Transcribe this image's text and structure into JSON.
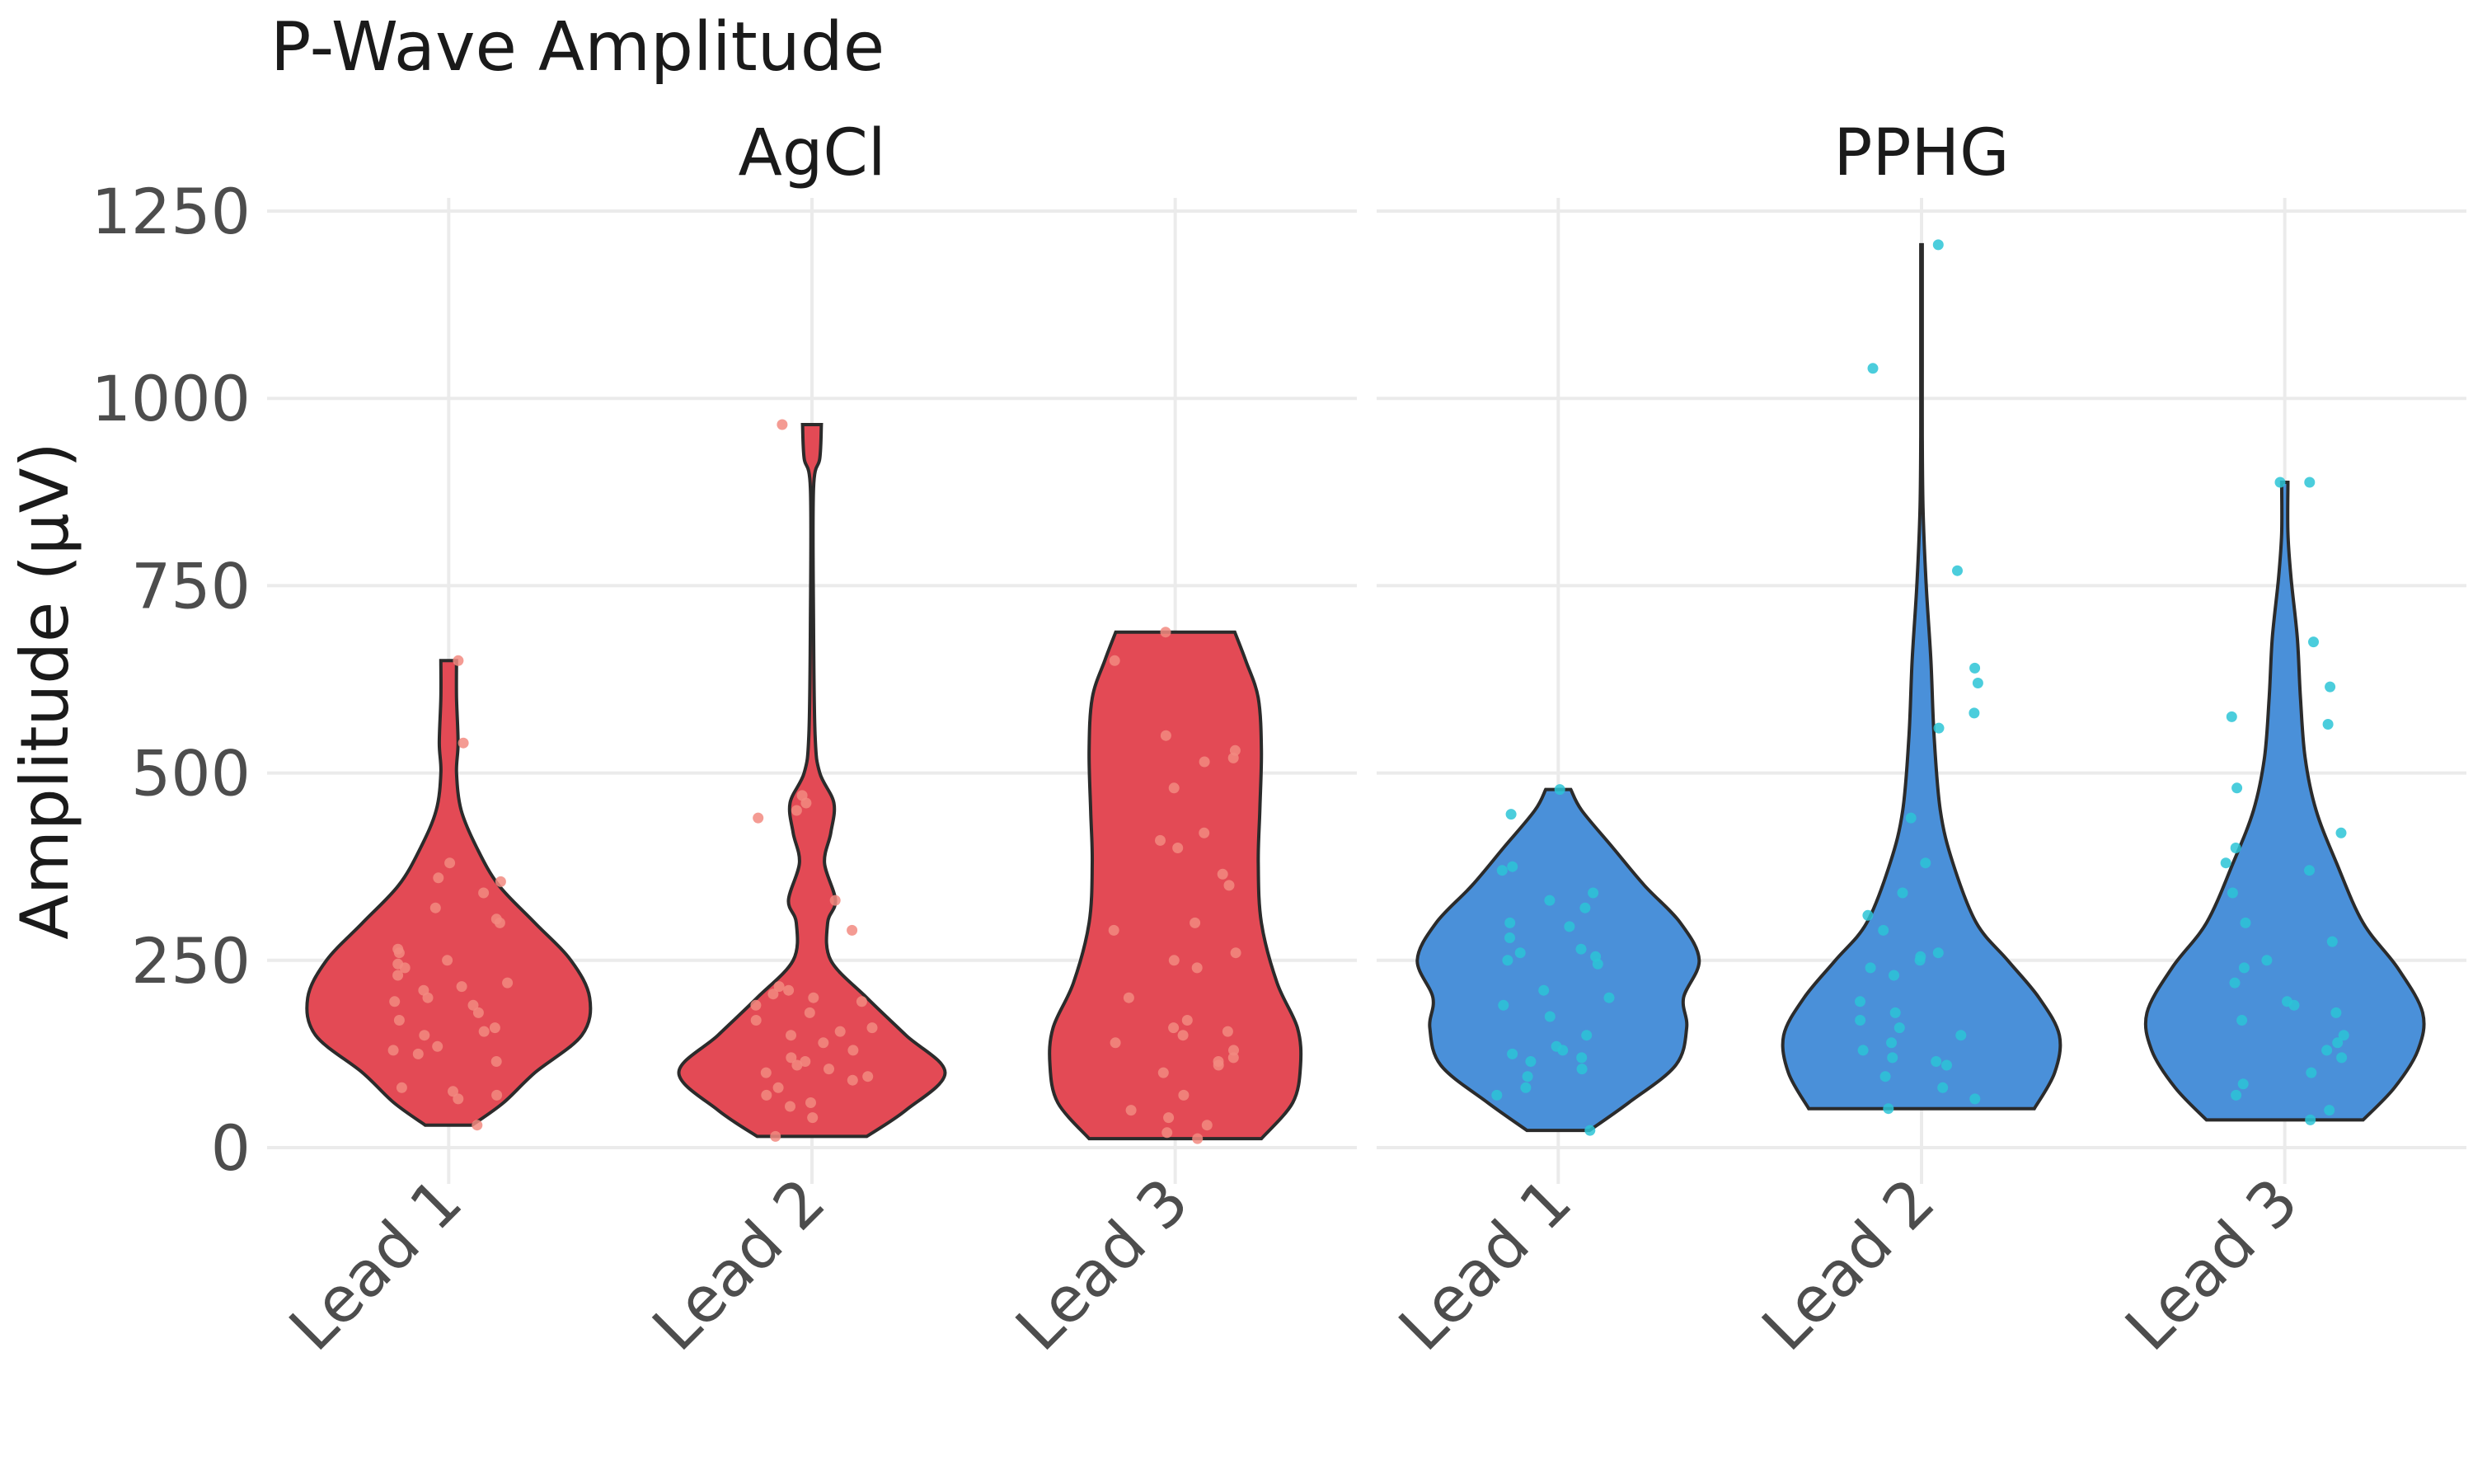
{
  "chart_data": {
    "type": "violin",
    "title": "P-Wave Amplitude",
    "xlabel": "",
    "ylabel": "Amplitude (µV)",
    "ylim": [
      -50,
      1300
    ],
    "yticks": [
      0,
      250,
      500,
      750,
      1000,
      1250
    ],
    "grid": true,
    "legend": "none",
    "categories": [
      "Lead 1",
      "Lead 2",
      "Lead 3"
    ],
    "panels": [
      {
        "label": "AgCl",
        "color": "#e34a55",
        "point_color": "#f28a80",
        "violins": [
          {
            "category": "Lead 1",
            "profile": [
              [
                30,
                0.15
              ],
              [
                60,
                0.35
              ],
              [
                100,
                0.55
              ],
              [
                150,
                0.85
              ],
              [
                200,
                0.9
              ],
              [
                250,
                0.78
              ],
              [
                300,
                0.55
              ],
              [
                350,
                0.32
              ],
              [
                400,
                0.18
              ],
              [
                450,
                0.08
              ],
              [
                500,
                0.05
              ],
              [
                540,
                0.06
              ],
              [
                600,
                0.05
              ],
              [
                650,
                0.05
              ]
            ],
            "points": [
              30,
              65,
              70,
              75,
              80,
              115,
              125,
              130,
              135,
              150,
              155,
              160,
              170,
              180,
              190,
              195,
              200,
              210,
              215,
              220,
              230,
              240,
              245,
              250,
              260,
              265,
              300,
              305,
              320,
              340,
              355,
              360,
              380,
              540,
              650
            ]
          },
          {
            "category": "Lead 2",
            "profile": [
              [
                15,
                0.35
              ],
              [
                50,
                0.6
              ],
              [
                100,
                0.85
              ],
              [
                150,
                0.6
              ],
              [
                200,
                0.35
              ],
              [
                250,
                0.12
              ],
              [
                300,
                0.1
              ],
              [
                330,
                0.15
              ],
              [
                380,
                0.08
              ],
              [
                420,
                0.12
              ],
              [
                460,
                0.14
              ],
              [
                500,
                0.05
              ],
              [
                550,
                0.02
              ],
              [
                700,
                0.01
              ],
              [
                880,
                0.01
              ],
              [
                920,
                0.05
              ],
              [
                965,
                0.06
              ]
            ],
            "points": [
              15,
              40,
              55,
              60,
              70,
              80,
              90,
              95,
              100,
              105,
              110,
              115,
              120,
              130,
              140,
              150,
              155,
              160,
              170,
              180,
              190,
              195,
              200,
              205,
              210,
              215,
              290,
              330,
              440,
              450,
              460,
              470,
              965
            ]
          },
          {
            "category": "Lead 3",
            "profile": [
              [
                12,
                0.55
              ],
              [
                60,
                0.75
              ],
              [
                110,
                0.8
              ],
              [
                160,
                0.78
              ],
              [
                220,
                0.65
              ],
              [
                300,
                0.55
              ],
              [
                380,
                0.53
              ],
              [
                450,
                0.54
              ],
              [
                530,
                0.55
              ],
              [
                600,
                0.53
              ],
              [
                650,
                0.45
              ],
              [
                688,
                0.38
              ]
            ],
            "points": [
              12,
              20,
              30,
              40,
              50,
              70,
              100,
              110,
              115,
              120,
              130,
              140,
              150,
              155,
              160,
              170,
              200,
              240,
              250,
              260,
              290,
              300,
              350,
              365,
              400,
              410,
              420,
              480,
              515,
              520,
              530,
              550,
              650,
              688
            ]
          }
        ]
      },
      {
        "label": "PPHG",
        "color": "#4a90d9",
        "point_color": "#2cc4d6",
        "violins": [
          {
            "category": "Lead 1",
            "profile": [
              [
                23,
                0.2
              ],
              [
                60,
                0.45
              ],
              [
                110,
                0.75
              ],
              [
                160,
                0.82
              ],
              [
                200,
                0.8
              ],
              [
                250,
                0.9
              ],
              [
                300,
                0.78
              ],
              [
                350,
                0.55
              ],
              [
                400,
                0.35
              ],
              [
                450,
                0.15
              ],
              [
                478,
                0.08
              ]
            ],
            "points": [
              23,
              70,
              80,
              95,
              105,
              115,
              120,
              125,
              130,
              135,
              150,
              175,
              190,
              200,
              210,
              245,
              250,
              255,
              260,
              265,
              280,
              295,
              300,
              320,
              330,
              340,
              370,
              375,
              445,
              478
            ]
          },
          {
            "category": "Lead 2",
            "profile": [
              [
                52,
                0.72
              ],
              [
                100,
                0.85
              ],
              [
                150,
                0.88
              ],
              [
                200,
                0.75
              ],
              [
                250,
                0.55
              ],
              [
                300,
                0.35
              ],
              [
                380,
                0.2
              ],
              [
                450,
                0.12
              ],
              [
                550,
                0.08
              ],
              [
                650,
                0.06
              ],
              [
                750,
                0.03
              ],
              [
                850,
                0.01
              ],
              [
                950,
                0.005
              ],
              [
                1050,
                0.005
              ],
              [
                1150,
                0.005
              ],
              [
                1205,
                0.005
              ]
            ],
            "points": [
              52,
              65,
              80,
              95,
              110,
              115,
              120,
              130,
              140,
              150,
              160,
              170,
              180,
              195,
              230,
              240,
              250,
              255,
              260,
              290,
              310,
              340,
              380,
              440,
              560,
              580,
              620,
              640,
              770,
              1040,
              1205
            ]
          },
          {
            "category": "Lead 3",
            "profile": [
              [
                37,
                0.5
              ],
              [
                80,
                0.7
              ],
              [
                130,
                0.85
              ],
              [
                180,
                0.88
              ],
              [
                240,
                0.72
              ],
              [
                300,
                0.5
              ],
              [
                380,
                0.33
              ],
              [
                450,
                0.2
              ],
              [
                520,
                0.13
              ],
              [
                600,
                0.1
              ],
              [
                680,
                0.08
              ],
              [
                760,
                0.04
              ],
              [
                820,
                0.02
              ],
              [
                888,
                0.02
              ]
            ],
            "points": [
              37,
              50,
              70,
              85,
              100,
              120,
              130,
              140,
              150,
              170,
              180,
              190,
              195,
              220,
              240,
              250,
              275,
              300,
              340,
              370,
              380,
              400,
              420,
              480,
              565,
              575,
              615,
              675,
              888,
              888
            ]
          }
        ]
      }
    ]
  }
}
